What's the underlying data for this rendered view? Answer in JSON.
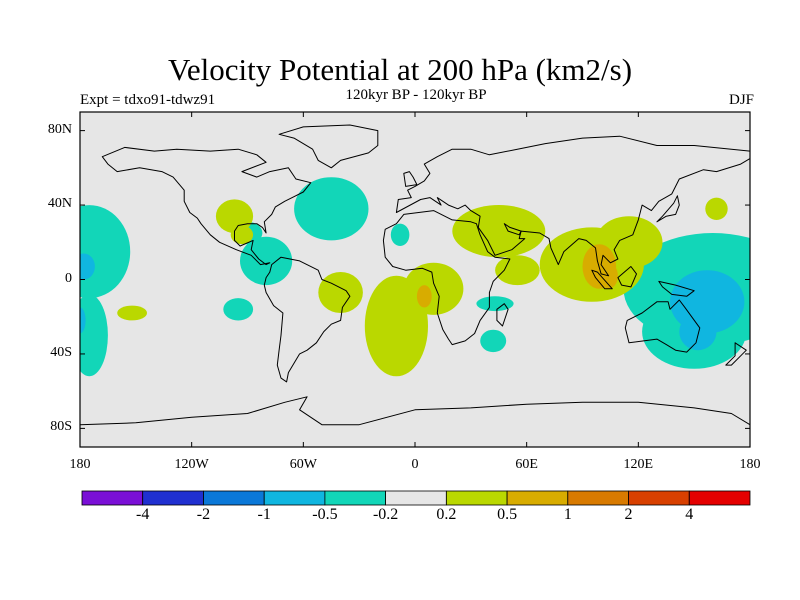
{
  "title": "Velocity Potential at 200 hPa (km2/s)",
  "subtitle": "120kyr BP - 120kyr BP",
  "experiment": "Expt = tdxo91-tdwz91",
  "season": "DJF",
  "map": {
    "projection": "equirectangular",
    "lon_range": [
      -180,
      180
    ],
    "lat_range": [
      -90,
      90
    ],
    "background_color": "#e6e6e6",
    "x_ticks": [
      {
        "lon": -180,
        "label": "180"
      },
      {
        "lon": -120,
        "label": "120W"
      },
      {
        "lon": -60,
        "label": "60W"
      },
      {
        "lon": 0,
        "label": "0"
      },
      {
        "lon": 60,
        "label": "60E"
      },
      {
        "lon": 120,
        "label": "120E"
      },
      {
        "lon": 180,
        "label": "180"
      }
    ],
    "y_ticks": [
      {
        "lat": 80,
        "label": "80N"
      },
      {
        "lat": 40,
        "label": "40N"
      },
      {
        "lat": 0,
        "label": "0"
      },
      {
        "lat": -40,
        "label": "40S"
      },
      {
        "lat": -80,
        "label": "80S"
      }
    ]
  },
  "colorbar": {
    "colors": [
      "#7a0fd6",
      "#2030d0",
      "#0a78d8",
      "#10b6e0",
      "#12d6b8",
      "#e6e6e6",
      "#bad800",
      "#d8ac00",
      "#d87a00",
      "#d84000",
      "#e40000"
    ],
    "labels": [
      "-4",
      "-2",
      "-1",
      "-0.5",
      "-0.2",
      "0.2",
      "0.5",
      "1",
      "2",
      "4"
    ]
  },
  "fields": [
    {
      "name": "pacific-west-negative",
      "level": 4,
      "lon": -175,
      "lat": 15,
      "rx": 22,
      "ry": 25
    },
    {
      "name": "pacific-west-core",
      "level": 3,
      "lon": -178,
      "lat": 7,
      "rx": 6,
      "ry": 7
    },
    {
      "name": "pacific-southwest-negative",
      "level": 4,
      "lon": -175,
      "lat": -30,
      "rx": 10,
      "ry": 22
    },
    {
      "name": "pacific-southwest-core",
      "level": 3,
      "lon": -180,
      "lat": -22,
      "rx": 3,
      "ry": 7
    },
    {
      "name": "central-america-negative",
      "level": 4,
      "lon": -80,
      "lat": 10,
      "rx": 14,
      "ry": 13
    },
    {
      "name": "caribbean-negative",
      "level": 4,
      "lon": -90,
      "lat": 25,
      "rx": 8,
      "ry": 6
    },
    {
      "name": "atlantic-north-negative",
      "level": 4,
      "lon": -45,
      "lat": 38,
      "rx": 20,
      "ry": 17
    },
    {
      "name": "south-pacific-negative",
      "level": 4,
      "lon": -95,
      "lat": -16,
      "rx": 8,
      "ry": 6
    },
    {
      "name": "west-africa-negative",
      "level": 4,
      "lon": -8,
      "lat": 24,
      "rx": 5,
      "ry": 6
    },
    {
      "name": "madagascar-negative",
      "level": 4,
      "lon": 43,
      "lat": -13,
      "rx": 10,
      "ry": 4
    },
    {
      "name": "madagascar-south-negative",
      "level": 4,
      "lon": 42,
      "lat": -33,
      "rx": 7,
      "ry": 6
    },
    {
      "name": "maritime-continent-negative",
      "level": 4,
      "lon": 160,
      "lat": -5,
      "rx": 48,
      "ry": 30
    },
    {
      "name": "australia-negative",
      "level": 4,
      "lon": 150,
      "lat": -28,
      "rx": 28,
      "ry": 20
    },
    {
      "name": "western-pacific-core",
      "level": 3,
      "lon": 157,
      "lat": -12,
      "rx": 20,
      "ry": 17
    },
    {
      "name": "australia-core",
      "level": 3,
      "lon": 152,
      "lat": -28,
      "rx": 10,
      "ry": 10
    },
    {
      "name": "north-america-positive",
      "level": 6,
      "lon": -97,
      "lat": 34,
      "rx": 10,
      "ry": 9
    },
    {
      "name": "gulf-positive",
      "level": 6,
      "lon": -93,
      "lat": 24,
      "rx": 6,
      "ry": 5
    },
    {
      "name": "tropical-pacific-positive",
      "level": 6,
      "lon": -152,
      "lat": -18,
      "rx": 8,
      "ry": 4
    },
    {
      "name": "south-atlantic-positive",
      "level": 6,
      "lon": -10,
      "lat": -25,
      "rx": 17,
      "ry": 27
    },
    {
      "name": "brazil-positive",
      "level": 6,
      "lon": -40,
      "lat": -7,
      "rx": 12,
      "ry": 11
    },
    {
      "name": "africa-positive",
      "level": 6,
      "lon": 10,
      "lat": -5,
      "rx": 16,
      "ry": 14
    },
    {
      "name": "middle-east-positive",
      "level": 6,
      "lon": 45,
      "lat": 26,
      "rx": 25,
      "ry": 14
    },
    {
      "name": "east-africa-positive",
      "level": 6,
      "lon": 55,
      "lat": 5,
      "rx": 12,
      "ry": 8
    },
    {
      "name": "asia-positive",
      "level": 6,
      "lon": 95,
      "lat": 8,
      "rx": 28,
      "ry": 20
    },
    {
      "name": "east-asia-positive",
      "level": 6,
      "lon": 115,
      "lat": 20,
      "rx": 18,
      "ry": 14
    },
    {
      "name": "pacific-northeast-positive",
      "level": 6,
      "lon": 162,
      "lat": 38,
      "rx": 6,
      "ry": 6
    },
    {
      "name": "gulf-of-guinea-core",
      "level": 7,
      "lon": 5,
      "lat": -9,
      "rx": 4,
      "ry": 6
    },
    {
      "name": "indochina-core",
      "level": 7,
      "lon": 99,
      "lat": 7,
      "rx": 9,
      "ry": 12
    },
    {
      "name": "indonesia-core",
      "level": 7,
      "lon": 104,
      "lat": 2,
      "rx": 5,
      "ry": 7
    }
  ],
  "continents": [
    {
      "name": "north-america",
      "points": [
        [
          -168,
          66
        ],
        [
          -156,
          71
        ],
        [
          -140,
          69
        ],
        [
          -128,
          70
        ],
        [
          -110,
          69
        ],
        [
          -95,
          70
        ],
        [
          -85,
          67
        ],
        [
          -80,
          63
        ],
        [
          -93,
          58
        ],
        [
          -85,
          55
        ],
        [
          -78,
          58
        ],
        [
          -68,
          60
        ],
        [
          -64,
          54
        ],
        [
          -56,
          52
        ],
        [
          -60,
          47
        ],
        [
          -66,
          44
        ],
        [
          -70,
          42
        ],
        [
          -75,
          39
        ],
        [
          -77,
          35
        ],
        [
          -81,
          31
        ],
        [
          -80,
          25
        ],
        [
          -82,
          28
        ],
        [
          -85,
          30
        ],
        [
          -90,
          30
        ],
        [
          -95,
          29
        ],
        [
          -97,
          26
        ],
        [
          -97,
          21
        ],
        [
          -94,
          18
        ],
        [
          -87,
          21
        ],
        [
          -88,
          16
        ],
        [
          -84,
          11
        ],
        [
          -80,
          8
        ],
        [
          -78,
          9
        ],
        [
          -83,
          8
        ],
        [
          -88,
          13
        ],
        [
          -96,
          16
        ],
        [
          -105,
          20
        ],
        [
          -110,
          24
        ],
        [
          -115,
          30
        ],
        [
          -117,
          33
        ],
        [
          -121,
          36
        ],
        [
          -124,
          42
        ],
        [
          -124,
          48
        ],
        [
          -130,
          55
        ],
        [
          -136,
          58
        ],
        [
          -148,
          60
        ],
        [
          -160,
          58
        ],
        [
          -165,
          62
        ]
      ]
    },
    {
      "name": "greenland",
      "points": [
        [
          -73,
          78
        ],
        [
          -60,
          82
        ],
        [
          -35,
          83
        ],
        [
          -20,
          80
        ],
        [
          -20,
          72
        ],
        [
          -25,
          68
        ],
        [
          -40,
          64
        ],
        [
          -45,
          60
        ],
        [
          -52,
          64
        ],
        [
          -55,
          70
        ],
        [
          -65,
          76
        ]
      ]
    },
    {
      "name": "south-america",
      "points": [
        [
          -77,
          8
        ],
        [
          -72,
          12
        ],
        [
          -62,
          10
        ],
        [
          -52,
          5
        ],
        [
          -50,
          0
        ],
        [
          -45,
          -2
        ],
        [
          -37,
          -6
        ],
        [
          -35,
          -9
        ],
        [
          -39,
          -15
        ],
        [
          -40,
          -22
        ],
        [
          -45,
          -24
        ],
        [
          -49,
          -28
        ],
        [
          -53,
          -34
        ],
        [
          -58,
          -38
        ],
        [
          -62,
          -40
        ],
        [
          -65,
          -45
        ],
        [
          -68,
          -50
        ],
        [
          -69,
          -55
        ],
        [
          -72,
          -53
        ],
        [
          -74,
          -46
        ],
        [
          -73,
          -38
        ],
        [
          -72,
          -30
        ],
        [
          -71,
          -18
        ],
        [
          -76,
          -14
        ],
        [
          -80,
          -7
        ],
        [
          -81,
          -3
        ],
        [
          -80,
          1
        ],
        [
          -78,
          4
        ]
      ]
    },
    {
      "name": "africa",
      "points": [
        [
          -17,
          21
        ],
        [
          -16,
          27
        ],
        [
          -10,
          30
        ],
        [
          -6,
          35
        ],
        [
          10,
          37
        ],
        [
          20,
          32
        ],
        [
          30,
          31
        ],
        [
          33,
          30
        ],
        [
          35,
          24
        ],
        [
          39,
          15
        ],
        [
          43,
          12
        ],
        [
          51,
          11
        ],
        [
          48,
          5
        ],
        [
          42,
          -1
        ],
        [
          40,
          -7
        ],
        [
          40,
          -15
        ],
        [
          35,
          -22
        ],
        [
          32,
          -29
        ],
        [
          27,
          -33
        ],
        [
          20,
          -35
        ],
        [
          18,
          -32
        ],
        [
          15,
          -27
        ],
        [
          12,
          -18
        ],
        [
          13,
          -9
        ],
        [
          10,
          -2
        ],
        [
          9,
          4
        ],
        [
          4,
          6
        ],
        [
          -5,
          5
        ],
        [
          -12,
          7
        ],
        [
          -16,
          12
        ]
      ]
    },
    {
      "name": "madagascar",
      "points": [
        [
          44,
          -16
        ],
        [
          48,
          -13
        ],
        [
          50,
          -16
        ],
        [
          47,
          -25
        ],
        [
          44,
          -22
        ]
      ]
    },
    {
      "name": "eurasia",
      "points": [
        [
          -10,
          36
        ],
        [
          -9,
          43
        ],
        [
          -2,
          44
        ],
        [
          -4,
          48
        ],
        [
          0,
          50
        ],
        [
          5,
          53
        ],
        [
          8,
          57
        ],
        [
          5,
          62
        ],
        [
          12,
          66
        ],
        [
          20,
          70
        ],
        [
          30,
          70
        ],
        [
          40,
          67
        ],
        [
          55,
          70
        ],
        [
          70,
          73
        ],
        [
          90,
          76
        ],
        [
          110,
          77
        ],
        [
          130,
          72
        ],
        [
          150,
          72
        ],
        [
          170,
          70
        ],
        [
          180,
          69
        ],
        [
          180,
          65
        ],
        [
          175,
          62
        ],
        [
          162,
          58
        ],
        [
          155,
          59
        ],
        [
          142,
          54
        ],
        [
          138,
          46
        ],
        [
          131,
          42
        ],
        [
          127,
          37
        ],
        [
          122,
          40
        ],
        [
          120,
          32
        ],
        [
          117,
          24
        ],
        [
          110,
          21
        ],
        [
          107,
          16
        ],
        [
          109,
          11
        ],
        [
          105,
          9
        ],
        [
          101,
          13
        ],
        [
          100,
          8
        ],
        [
          104,
          2
        ],
        [
          100,
          3
        ],
        [
          98,
          10
        ],
        [
          97,
          17
        ],
        [
          92,
          21
        ],
        [
          88,
          22
        ],
        [
          80,
          15
        ],
        [
          77,
          8
        ],
        [
          73,
          17
        ],
        [
          72,
          22
        ],
        [
          67,
          25
        ],
        [
          57,
          26
        ],
        [
          56,
          22
        ],
        [
          59,
          22
        ],
        [
          52,
          16
        ],
        [
          43,
          13
        ],
        [
          39,
          21
        ],
        [
          34,
          28
        ],
        [
          35,
          34
        ],
        [
          30,
          37
        ],
        [
          27,
          40
        ],
        [
          23,
          38
        ],
        [
          18,
          40
        ],
        [
          12,
          44
        ],
        [
          14,
          40
        ],
        [
          8,
          44
        ],
        [
          3,
          43
        ]
      ]
    },
    {
      "name": "arabia-notch",
      "points": [
        [
          48,
          30
        ],
        [
          50,
          26
        ],
        [
          56,
          24
        ],
        [
          57,
          26
        ],
        [
          51,
          28
        ]
      ]
    },
    {
      "name": "uk",
      "points": [
        [
          -5,
          50
        ],
        [
          1,
          51
        ],
        [
          -1,
          55
        ],
        [
          -3,
          58
        ],
        [
          -6,
          57
        ]
      ]
    },
    {
      "name": "japan",
      "points": [
        [
          130,
          31
        ],
        [
          135,
          34
        ],
        [
          140,
          35
        ],
        [
          142,
          40
        ],
        [
          141,
          45
        ],
        [
          139,
          41
        ],
        [
          133,
          34
        ]
      ]
    },
    {
      "name": "borneo",
      "points": [
        [
          109,
          1
        ],
        [
          116,
          7
        ],
        [
          119,
          3
        ],
        [
          116,
          -4
        ],
        [
          111,
          -3
        ]
      ]
    },
    {
      "name": "sumatra",
      "points": [
        [
          95,
          5
        ],
        [
          98,
          4
        ],
        [
          106,
          -5
        ],
        [
          102,
          -5
        ],
        [
          97,
          1
        ]
      ]
    },
    {
      "name": "new-guinea",
      "points": [
        [
          131,
          -1
        ],
        [
          140,
          -3
        ],
        [
          150,
          -6
        ],
        [
          146,
          -9
        ],
        [
          138,
          -8
        ],
        [
          133,
          -4
        ]
      ]
    },
    {
      "name": "australia",
      "points": [
        [
          114,
          -22
        ],
        [
          122,
          -18
        ],
        [
          130,
          -12
        ],
        [
          136,
          -12
        ],
        [
          137,
          -16
        ],
        [
          142,
          -11
        ],
        [
          145,
          -15
        ],
        [
          153,
          -26
        ],
        [
          151,
          -34
        ],
        [
          146,
          -39
        ],
        [
          140,
          -38
        ],
        [
          135,
          -35
        ],
        [
          130,
          -32
        ],
        [
          115,
          -34
        ],
        [
          113,
          -26
        ]
      ]
    },
    {
      "name": "new-zealand",
      "points": [
        [
          172,
          -34
        ],
        [
          178,
          -38
        ],
        [
          175,
          -41
        ],
        [
          170,
          -46
        ],
        [
          167,
          -46
        ],
        [
          172,
          -41
        ]
      ]
    },
    {
      "name": "antarctica",
      "points": [
        [
          -180,
          -78
        ],
        [
          -150,
          -77
        ],
        [
          -120,
          -74
        ],
        [
          -90,
          -72
        ],
        [
          -70,
          -66
        ],
        [
          -58,
          -63
        ],
        [
          -62,
          -70
        ],
        [
          -50,
          -78
        ],
        [
          -30,
          -78
        ],
        [
          0,
          -70
        ],
        [
          30,
          -69
        ],
        [
          60,
          -67
        ],
        [
          90,
          -66
        ],
        [
          120,
          -66
        ],
        [
          150,
          -69
        ],
        [
          170,
          -72
        ],
        [
          180,
          -78
        ],
        [
          180,
          -90
        ],
        [
          -180,
          -90
        ]
      ]
    }
  ]
}
